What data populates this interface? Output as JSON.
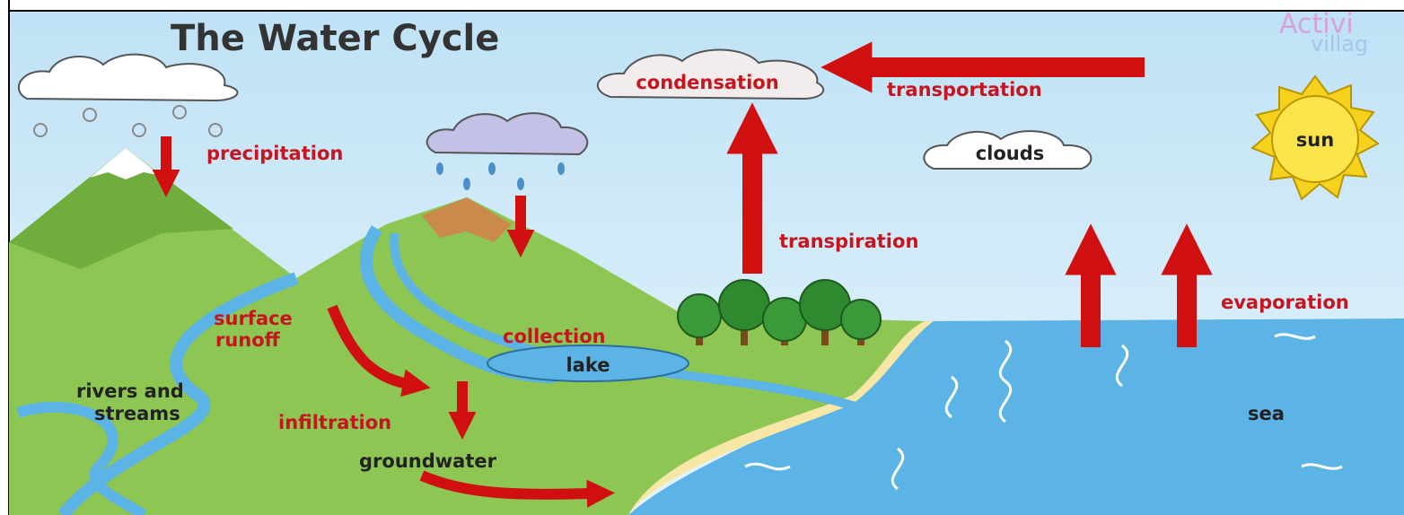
{
  "header": {
    "title": "The Water Cycle"
  },
  "logo": {
    "line1": "Activi",
    "line2": "villag"
  },
  "labels": {
    "condensation": "condensation",
    "transportation": "transportation",
    "precipitation": "precipitation",
    "clouds": "clouds",
    "sun": "sun",
    "transpiration": "transpiration",
    "evaporation": "evaporation",
    "surface_runoff": [
      "surface",
      "runoff"
    ],
    "collection": "collection",
    "lake": "lake",
    "rivers_and_streams": [
      "rivers and",
      "streams"
    ],
    "infiltration": "infiltration",
    "groundwater": "groundwater",
    "sea": "sea"
  }
}
